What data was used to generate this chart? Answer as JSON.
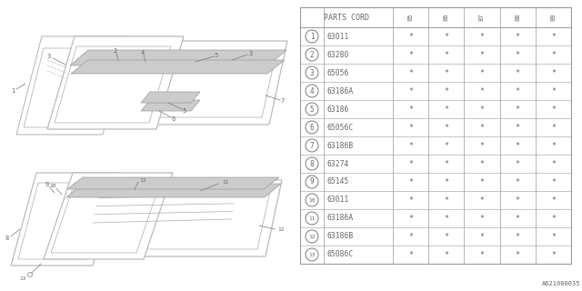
{
  "background_color": "#ffffff",
  "table_header": "PARTS CORD",
  "col_headers": [
    "85",
    "86",
    "87",
    "88",
    "89"
  ],
  "rows": [
    {
      "num": "1",
      "code": "63011"
    },
    {
      "num": "2",
      "code": "63280"
    },
    {
      "num": "3",
      "code": "65056"
    },
    {
      "num": "4",
      "code": "63186A"
    },
    {
      "num": "5",
      "code": "63186"
    },
    {
      "num": "6",
      "code": "65056C"
    },
    {
      "num": "7",
      "code": "63186B"
    },
    {
      "num": "8",
      "code": "63274"
    },
    {
      "num": "9",
      "code": "65145"
    },
    {
      "num": "10",
      "code": "63011"
    },
    {
      "num": "11",
      "code": "63186A"
    },
    {
      "num": "12",
      "code": "63186B"
    },
    {
      "num": "13",
      "code": "65086C"
    }
  ],
  "star_symbol": "*",
  "footer_text": "A621000035",
  "font_color": "#666666",
  "line_color": "#999999",
  "diagram_line_color": "#aaaaaa",
  "diagram_dark_color": "#bbbbbb"
}
